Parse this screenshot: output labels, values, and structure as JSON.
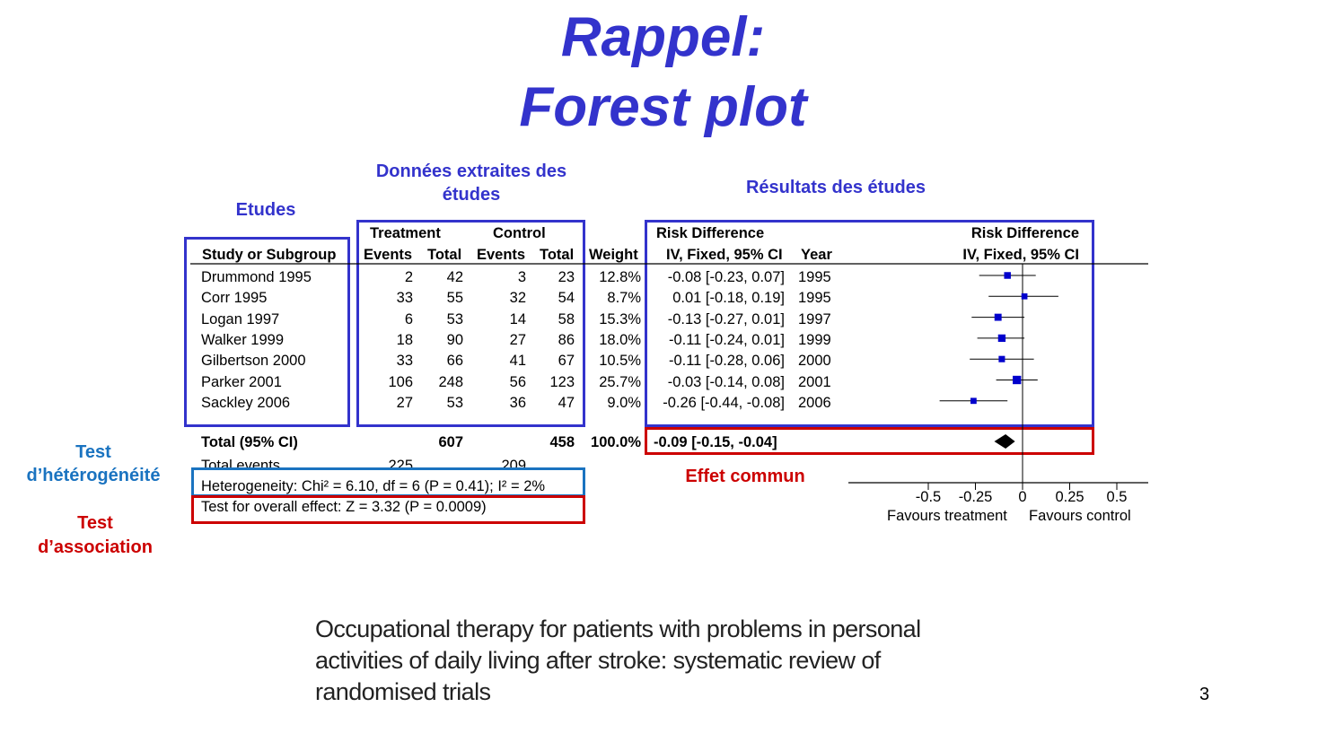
{
  "slide": {
    "title_line1": "Rappel:",
    "title_line2": "Forest plot",
    "page_number": "3"
  },
  "annotations": {
    "etudes": "Etudes",
    "donnees_line1": "Données extraites des",
    "donnees_line2": "études",
    "resultats": "Résultats des études",
    "test_het_line1": "Test",
    "test_het_line2": "d’hétérogénéité",
    "test_assoc_line1": "Test",
    "test_assoc_line2": "d’association",
    "effet_commun": "Effet commun"
  },
  "table": {
    "group_treatment": "Treatment",
    "group_control": "Control",
    "headers": {
      "study": "Study or Subgroup",
      "events": "Events",
      "total": "Total",
      "events2": "Events",
      "total2": "Total",
      "weight": "Weight",
      "rd_title": "Risk Difference",
      "rd_method": "IV, Fixed, 95% CI",
      "year": "Year",
      "plot_title": "Risk Difference",
      "plot_method": "IV, Fixed, 95% CI"
    },
    "total_label": "Total (95% CI)",
    "total_treat": "607",
    "total_ctrl": "458",
    "total_weight": "100.0%",
    "total_ci": "-0.09 [-0.15, -0.04]",
    "total_events_label": "Total events",
    "total_events_treat": "225",
    "total_events_ctrl": "209",
    "heterogeneity": "Heterogeneity: Chi² = 6.10, df = 6 (P = 0.41); I² = 2%",
    "overall_effect": "Test for overall effect: Z = 3.32 (P = 0.0009)"
  },
  "chart_data": {
    "type": "scatter",
    "subtype": "forest",
    "xlabel_left": "Favours treatment",
    "xlabel_right": "Favours control",
    "xlim": [
      -0.5,
      0.5
    ],
    "xticks": [
      "-0.5",
      "-0.25",
      "0",
      "0.25",
      "0.5"
    ],
    "studies": [
      {
        "name": "Drummond 1995",
        "ev_t": "2",
        "tot_t": "42",
        "ev_c": "3",
        "tot_c": "23",
        "weight": "12.8%",
        "ci": "-0.08 [-0.23, 0.07]",
        "year": "1995",
        "est": -0.08,
        "lo": -0.23,
        "hi": 0.07,
        "w": 12.8
      },
      {
        "name": "Corr 1995",
        "ev_t": "33",
        "tot_t": "55",
        "ev_c": "32",
        "tot_c": "54",
        "weight": "8.7%",
        "ci": "0.01 [-0.18, 0.19]",
        "year": "1995",
        "est": 0.01,
        "lo": -0.18,
        "hi": 0.19,
        "w": 8.7
      },
      {
        "name": "Logan 1997",
        "ev_t": "6",
        "tot_t": "53",
        "ev_c": "14",
        "tot_c": "58",
        "weight": "15.3%",
        "ci": "-0.13 [-0.27, 0.01]",
        "year": "1997",
        "est": -0.13,
        "lo": -0.27,
        "hi": 0.01,
        "w": 15.3
      },
      {
        "name": "Walker 1999",
        "ev_t": "18",
        "tot_t": "90",
        "ev_c": "27",
        "tot_c": "86",
        "weight": "18.0%",
        "ci": "-0.11 [-0.24, 0.01]",
        "year": "1999",
        "est": -0.11,
        "lo": -0.24,
        "hi": 0.01,
        "w": 18.0
      },
      {
        "name": "Gilbertson 2000",
        "ev_t": "33",
        "tot_t": "66",
        "ev_c": "41",
        "tot_c": "67",
        "weight": "10.5%",
        "ci": "-0.11 [-0.28, 0.06]",
        "year": "2000",
        "est": -0.11,
        "lo": -0.28,
        "hi": 0.06,
        "w": 10.5
      },
      {
        "name": "Parker 2001",
        "ev_t": "106",
        "tot_t": "248",
        "ev_c": "56",
        "tot_c": "123",
        "weight": "25.7%",
        "ci": "-0.03 [-0.14, 0.08]",
        "year": "2001",
        "est": -0.03,
        "lo": -0.14,
        "hi": 0.08,
        "w": 25.7
      },
      {
        "name": "Sackley 2006",
        "ev_t": "27",
        "tot_t": "53",
        "ev_c": "36",
        "tot_c": "47",
        "weight": "9.0%",
        "ci": "-0.26 [-0.44, -0.08]",
        "year": "2006",
        "est": -0.26,
        "lo": -0.44,
        "hi": -0.08,
        "w": 9.0
      }
    ],
    "pooled": {
      "est": -0.09,
      "lo": -0.15,
      "hi": -0.04
    }
  },
  "reference": {
    "line1": "Occupational therapy for patients with problems in personal",
    "line2": "activities of daily living after stroke: systematic review of",
    "line3": "randomised trials"
  }
}
